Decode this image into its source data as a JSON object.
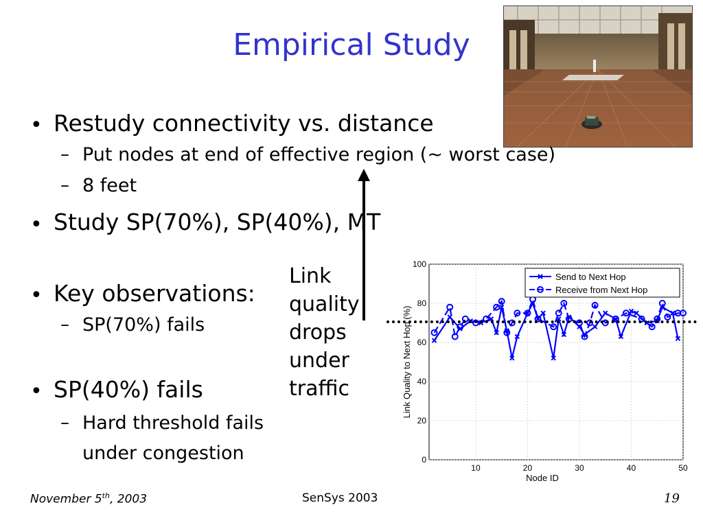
{
  "slide": {
    "title": "Empirical Study",
    "bullets": [
      {
        "text": "Restudy connectivity vs. distance",
        "subs": [
          "Put nodes at end of effective region (~ worst case)",
          "8 feet"
        ]
      },
      {
        "text": "Study SP(70%), SP(40%), MT",
        "subs": []
      },
      {
        "text": "Key observations:",
        "subs": [
          "SP(70%) fails"
        ]
      },
      {
        "text": "SP(40%) fails",
        "subs": [
          "Hard threshold fails",
          "under congestion"
        ]
      }
    ],
    "annotation_lines": [
      "Link",
      "quality",
      "drops",
      "under",
      "traffic"
    ],
    "footer": {
      "date_prefix": "November 5",
      "date_sup": "th",
      "date_suffix": ", 2003",
      "conference": "SenSys 2003",
      "page_number": "19"
    }
  },
  "colors": {
    "title": "#3333cc",
    "series": "#0000ff"
  },
  "chart_data": {
    "type": "line",
    "xlabel": "Node ID",
    "ylabel": "Link Quality to Next Hop (%)",
    "xlim": [
      1,
      50
    ],
    "ylim": [
      0,
      100
    ],
    "xticks": [
      "10",
      "20",
      "30",
      "40",
      "50"
    ],
    "yticks": [
      "0",
      "20",
      "40",
      "60",
      "80",
      "100"
    ],
    "grid": true,
    "legend_position": "top-right",
    "series": [
      {
        "name": "Send to Next Hop",
        "marker": "x",
        "x": [
          2,
          5,
          7,
          9,
          11,
          13,
          14,
          15,
          16,
          17,
          18,
          20,
          21,
          22,
          23,
          25,
          26,
          27,
          28,
          30,
          31,
          33,
          35,
          37,
          38,
          40,
          41,
          43,
          45,
          46,
          48,
          49
        ],
        "y": [
          61,
          73,
          67,
          71,
          70,
          72,
          65,
          78,
          66,
          52,
          63,
          75,
          80,
          72,
          75,
          52,
          72,
          64,
          73,
          68,
          64,
          68,
          75,
          72,
          63,
          76,
          75,
          70,
          71,
          78,
          75,
          62
        ]
      },
      {
        "name": "Receive from Next Hop",
        "marker": "o",
        "x": [
          2,
          5,
          6,
          7,
          8,
          10,
          12,
          14,
          15,
          16,
          17,
          18,
          20,
          21,
          22,
          25,
          26,
          27,
          28,
          30,
          31,
          32,
          33,
          35,
          37,
          39,
          42,
          44,
          45,
          46,
          47,
          49,
          50
        ],
        "y": [
          65,
          78,
          63,
          68,
          72,
          70,
          72,
          78,
          81,
          65,
          70,
          75,
          75,
          82,
          72,
          68,
          75,
          80,
          72,
          70,
          63,
          70,
          79,
          70,
          72,
          75,
          72,
          68,
          72,
          80,
          73,
          75,
          75
        ]
      }
    ]
  }
}
